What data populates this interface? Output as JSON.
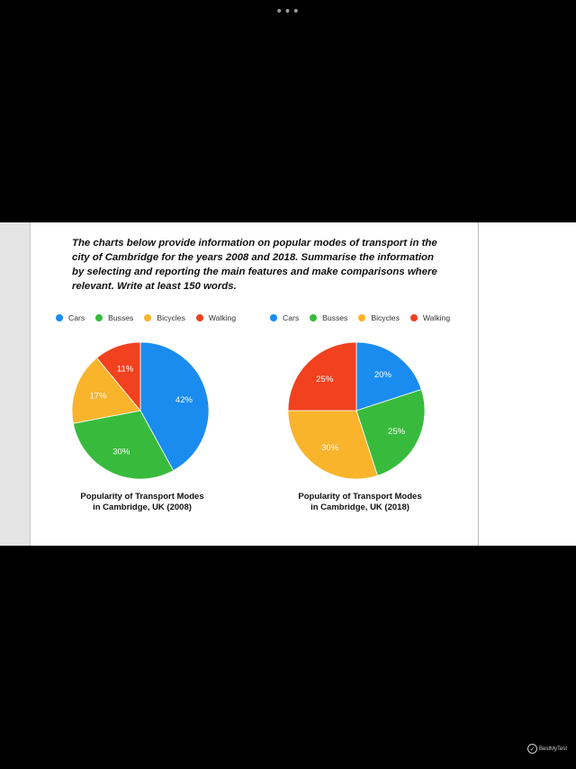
{
  "status_dots": "•••",
  "prompt": {
    "lines": [
      "The charts below provide information on popular modes of transport in the",
      "city of Cambridge for the years 2008 and 2018. Summarise the information",
      "by selecting and reporting the main features and make comparisons where",
      "relevant. Write at least 150 words."
    ]
  },
  "legend": [
    {
      "label": "Cars",
      "color": "#1a8cf0"
    },
    {
      "label": "Busses",
      "color": "#38bb3c"
    },
    {
      "label": "Bicycles",
      "color": "#f9b42c"
    },
    {
      "label": "Walking",
      "color": "#f1411f"
    }
  ],
  "chart_data": [
    {
      "type": "pie",
      "title": "Popularity of Transport Modes in Cambridge, UK (2008)",
      "title_lines": [
        "Popularity of Transport Modes",
        "in Cambridge, UK (2008)"
      ],
      "categories": [
        "Cars",
        "Busses",
        "Bicycles",
        "Walking"
      ],
      "values": [
        42,
        30,
        17,
        11
      ],
      "labels": [
        "42%",
        "30%",
        "17%",
        "11%"
      ],
      "colors": [
        "#1a8cf0",
        "#38bb3c",
        "#f9b42c",
        "#f1411f"
      ],
      "legend_position": "top"
    },
    {
      "type": "pie",
      "title": "Popularity of Transport Modes in Cambridge, UK (2018)",
      "title_lines": [
        "Popularity of Transport Modes",
        "in Cambridge, UK (2018)"
      ],
      "categories": [
        "Cars",
        "Busses",
        "Bicycles",
        "Walking"
      ],
      "values": [
        20,
        25,
        30,
        25
      ],
      "labels": [
        "20%",
        "25%",
        "30%",
        "25%"
      ],
      "colors": [
        "#1a8cf0",
        "#38bb3c",
        "#f9b42c",
        "#f1411f"
      ],
      "legend_position": "top"
    }
  ],
  "watermark": {
    "icon": "checkmark-icon",
    "text": "BestMyTest"
  }
}
